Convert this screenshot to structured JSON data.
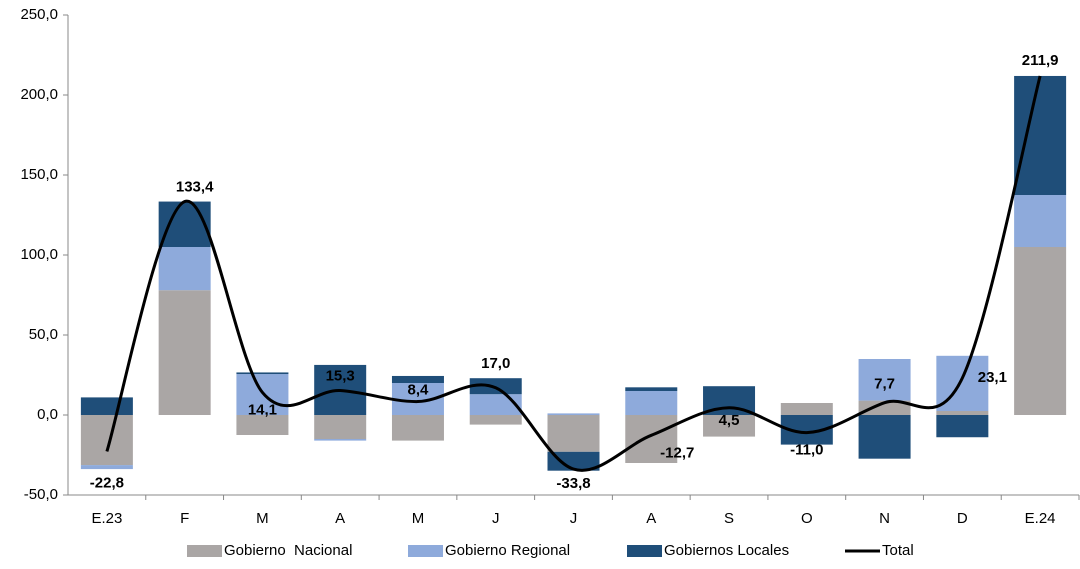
{
  "chart_data": {
    "type": "bar",
    "stacked": true,
    "categories": [
      "E.23",
      "F",
      "M",
      "A",
      "M",
      "J",
      "J",
      "A",
      "S",
      "O",
      "N",
      "D",
      "E.24"
    ],
    "series": [
      {
        "name": "Gobierno  Nacional",
        "type": "bar",
        "color": "#aaa6a5",
        "values": [
          -31.3,
          78,
          -12.5,
          -15,
          -16,
          -6,
          -23,
          -30,
          -13.5,
          7.5,
          9,
          2.5,
          105
        ]
      },
      {
        "name": "Gobierno Regional",
        "type": "bar",
        "color": "#8eaadb",
        "values": [
          -2.5,
          27,
          25.6,
          -1,
          20,
          13,
          1,
          15,
          0,
          0,
          26,
          34.5,
          32.5
        ]
      },
      {
        "name": "Gobiernos Locales",
        "type": "bar",
        "color": "#1f4e79",
        "values": [
          11,
          28.4,
          1,
          31.3,
          4.4,
          10,
          -11.8,
          2.3,
          18,
          -18.5,
          -27.3,
          -13.9,
          74.4
        ]
      },
      {
        "name": "Total",
        "type": "line",
        "color": "#000000",
        "values": [
          -22.8,
          133.4,
          14.1,
          15.3,
          8.4,
          17.0,
          -33.8,
          -12.7,
          4.5,
          -11.0,
          7.7,
          23.1,
          211.9
        ],
        "value_labels": [
          "-22,8",
          "133,4",
          "14,1",
          "15,3",
          "8,4",
          "17,0",
          "-33,8",
          "-12,7",
          "4,5",
          "-11,0",
          "7,7",
          "23,1",
          "211,9"
        ]
      }
    ],
    "ylim": [
      -50,
      250
    ],
    "yticks": [
      {
        "value": -50,
        "label": "-50,0"
      },
      {
        "value": 0,
        "label": "0,0"
      },
      {
        "value": 50,
        "label": "50,0"
      },
      {
        "value": 100,
        "label": "100,0"
      },
      {
        "value": 150,
        "label": "150,0"
      },
      {
        "value": 200,
        "label": "200,0"
      },
      {
        "value": 250,
        "label": "250,0"
      }
    ],
    "legend": "bottom"
  }
}
